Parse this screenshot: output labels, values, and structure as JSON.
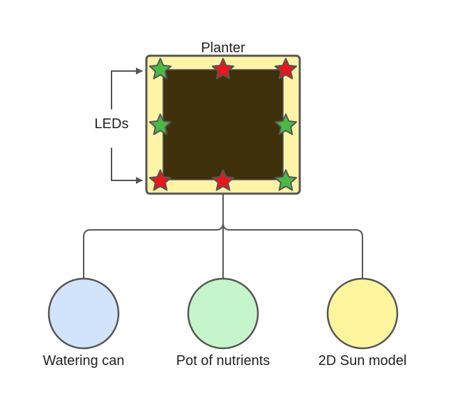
{
  "planter": {
    "label": "Planter",
    "frame_color": "#fff3a8",
    "soil_color": "#3f300c",
    "border_color": "#555555"
  },
  "leds": {
    "label": "LEDs",
    "colors": {
      "green": "#4cb848",
      "red": "#e4191e"
    },
    "stars": [
      {
        "position": "top-left",
        "color": "green"
      },
      {
        "position": "top-middle",
        "color": "red"
      },
      {
        "position": "top-right",
        "color": "red"
      },
      {
        "position": "middle-left",
        "color": "green"
      },
      {
        "position": "middle-right",
        "color": "green"
      },
      {
        "position": "bottom-left",
        "color": "red"
      },
      {
        "position": "bottom-middle",
        "color": "red"
      },
      {
        "position": "bottom-right",
        "color": "green"
      }
    ]
  },
  "nodes": [
    {
      "label": "Watering can",
      "fill": "#d2e3fc"
    },
    {
      "label": "Pot of nutrients",
      "fill": "#c6f5cb"
    },
    {
      "label": "2D Sun model",
      "fill": "#fff59f"
    }
  ],
  "line_color": "#555555"
}
